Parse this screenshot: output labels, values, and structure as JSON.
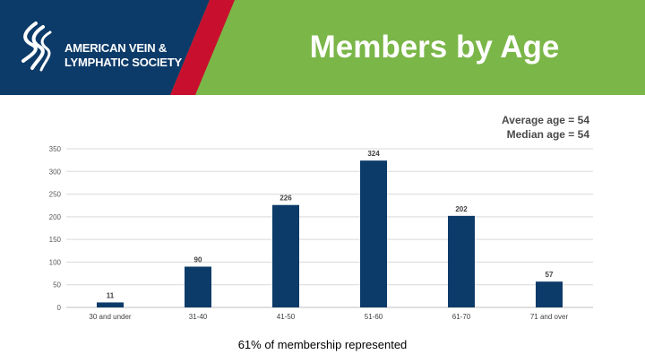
{
  "header": {
    "org_line1": "AMERICAN VEIN &",
    "org_line2": "LYMPHATIC SOCIETY",
    "title": "Members by Age",
    "colors": {
      "navy": "#0d3b69",
      "red": "#c8102e",
      "green": "#7ab648"
    }
  },
  "stats": {
    "average": "Average age = 54",
    "median": "Median age = 54"
  },
  "chart_data": {
    "type": "bar",
    "categories": [
      "30 and under",
      "31-40",
      "41-50",
      "51-60",
      "61-70",
      "71 and over"
    ],
    "values": [
      11,
      90,
      226,
      324,
      202,
      57
    ],
    "ylim": [
      0,
      350
    ],
    "yticks": [
      0,
      50,
      100,
      150,
      200,
      250,
      300,
      350
    ],
    "grid": true,
    "bar_color": "#0d3b69"
  },
  "footnote": "61% of membership represented"
}
